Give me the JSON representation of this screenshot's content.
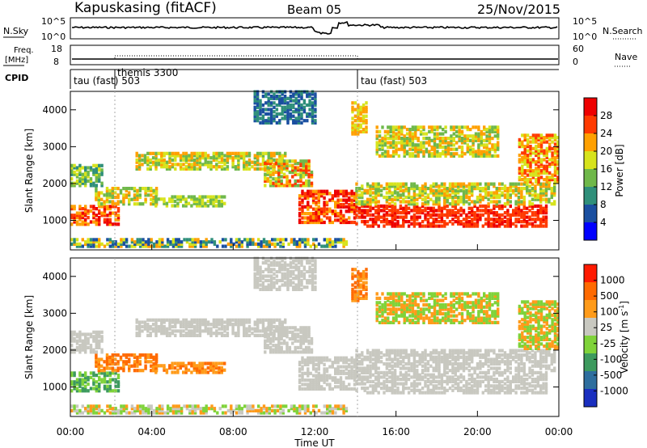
{
  "header": {
    "station": "Kapuskasing (fitACF)",
    "beam": "Beam 05",
    "date": "25/Nov/2015"
  },
  "panels": {
    "nsky_label": "N.Sky",
    "nsky_ticks": [
      "10^5",
      "10^0"
    ],
    "nsearch_label": "N.Search",
    "nsearch_ticks": [
      "10^5",
      "10^0"
    ],
    "freq_label_1": "Freq.",
    "freq_label_2": "[MHz]",
    "freq_ticks": [
      "18",
      "8"
    ],
    "nave_label": "Nave",
    "nave_ticks": [
      "60",
      "0"
    ],
    "cpid_label": "CPID",
    "cpid_segments": [
      "tau (fast) 503",
      "themis 3300",
      "tau (fast) 503"
    ]
  },
  "chart_data": [
    {
      "type": "heatmap",
      "name": "power",
      "ylabel": "Slant Range [km]",
      "xlabel": "",
      "yticks": [
        "1000",
        "2000",
        "3000",
        "4000"
      ],
      "ylim": [
        200,
        4500
      ],
      "xlim": [
        0,
        24
      ],
      "colorbar": {
        "label": "Power [dB]",
        "ticks": [
          "4",
          "8",
          "12",
          "16",
          "20",
          "24",
          "28"
        ],
        "colors": [
          "#0000ff",
          "#1a4fa0",
          "#2f8f7a",
          "#6fb84a",
          "#d7e31c",
          "#ffa000",
          "#ff3a00",
          "#ee0000"
        ]
      }
    },
    {
      "type": "heatmap",
      "name": "velocity",
      "ylabel": "Slant Range [km]",
      "xlabel": "Time UT",
      "yticks": [
        "1000",
        "2000",
        "3000",
        "4000"
      ],
      "ylim": [
        200,
        4500
      ],
      "xlim": [
        0,
        24
      ],
      "xticks": [
        "00:00",
        "04:00",
        "08:00",
        "12:00",
        "16:00",
        "20:00",
        "00:00"
      ],
      "colorbar": {
        "label": "Velocity [m s",
        "label_sup": "-1",
        "label_end": "]",
        "ticks": [
          "1000",
          "500",
          "100",
          "25",
          "-25",
          "-100",
          "-500",
          "-1000"
        ],
        "colors": [
          "#1a2fbf",
          "#2e6e9e",
          "#3d9a5e",
          "#7fd33a",
          "#c8c8c0",
          "#ff9b1a",
          "#ff6a00",
          "#ff1a00"
        ]
      }
    }
  ]
}
